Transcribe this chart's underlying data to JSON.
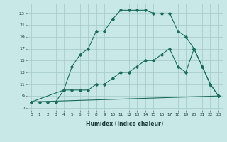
{
  "xlabel": "Humidex (Indice chaleur)",
  "bg_color": "#c8e8e8",
  "grid_color": "#a8cccc",
  "line_color": "#1a6b5a",
  "line1_x": [
    0,
    1,
    2,
    3,
    4,
    5,
    6,
    7,
    8,
    9,
    10,
    11,
    12,
    13,
    14,
    15,
    16,
    17,
    18,
    19,
    20,
    21,
    22,
    23
  ],
  "line1_y": [
    8,
    8,
    8,
    8,
    10,
    14,
    16,
    17,
    20,
    20,
    22,
    23.5,
    23.5,
    23.5,
    23.5,
    23,
    23,
    23,
    20,
    19,
    17,
    14,
    11,
    9
  ],
  "line2_x": [
    0,
    4,
    5,
    6,
    7,
    8,
    9,
    10,
    11,
    12,
    13,
    14,
    15,
    16,
    17,
    18,
    19,
    20,
    21,
    22,
    23
  ],
  "line2_y": [
    8,
    10,
    10,
    10,
    10,
    11,
    11,
    12,
    13,
    13,
    14,
    15,
    15,
    16,
    17,
    14,
    13,
    17,
    14,
    11,
    9
  ],
  "line3_x": [
    0,
    23
  ],
  "line3_y": [
    8,
    9
  ],
  "xlim": [
    -0.5,
    23.5
  ],
  "ylim": [
    6.5,
    24.5
  ],
  "xticks": [
    0,
    1,
    2,
    3,
    4,
    5,
    6,
    7,
    8,
    9,
    10,
    11,
    12,
    13,
    14,
    15,
    16,
    17,
    18,
    19,
    20,
    21,
    22,
    23
  ],
  "yticks": [
    7,
    9,
    11,
    13,
    15,
    17,
    19,
    21,
    23
  ]
}
